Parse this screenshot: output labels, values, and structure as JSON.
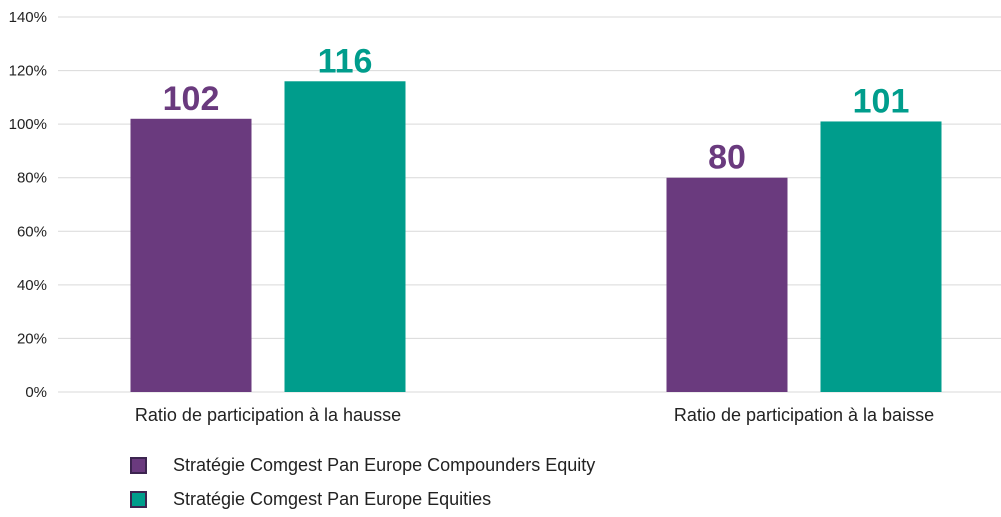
{
  "chart_data": {
    "type": "bar",
    "categories": [
      "Ratio de participation à la hausse",
      "Ratio de participation à la baisse"
    ],
    "series": [
      {
        "name": "Stratégie Comgest Pan Europe Compounders Equity",
        "values": [
          102,
          80
        ],
        "labels": [
          "102",
          "80"
        ],
        "color": "#6a3a7e"
      },
      {
        "name": "Stratégie Comgest Pan Europe Equities",
        "values": [
          116,
          101
        ],
        "labels": [
          "116",
          "101"
        ],
        "color": "#009d8c"
      }
    ],
    "yticks": [
      "0%",
      "20%",
      "40%",
      "60%",
      "80%",
      "100%",
      "120%",
      "140%"
    ],
    "ylim": [
      0,
      140
    ],
    "grid": true,
    "legend_position": "bottom-left"
  }
}
